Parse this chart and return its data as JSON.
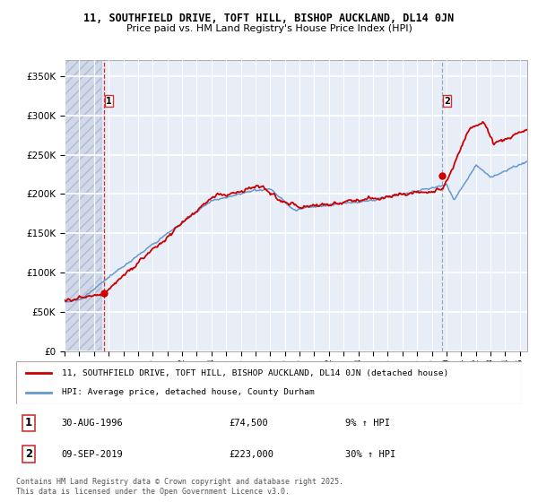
{
  "title1": "11, SOUTHFIELD DRIVE, TOFT HILL, BISHOP AUCKLAND, DL14 0JN",
  "title2": "Price paid vs. HM Land Registry's House Price Index (HPI)",
  "ylabel_ticks": [
    "£0",
    "£50K",
    "£100K",
    "£150K",
    "£200K",
    "£250K",
    "£300K",
    "£350K"
  ],
  "ytick_vals": [
    0,
    50000,
    100000,
    150000,
    200000,
    250000,
    300000,
    350000
  ],
  "ylim": [
    0,
    370000
  ],
  "xlim_start": 1994.0,
  "xlim_end": 2025.5,
  "hpi_color": "#6699cc",
  "price_color": "#cc0000",
  "bg_color": "#e8eef8",
  "hatch_end": 1996.5,
  "grid_color": "#ffffff",
  "marker1_x": 1996.66,
  "marker1_y": 74500,
  "marker2_x": 2019.69,
  "marker2_y": 223000,
  "legend_line1": "11, SOUTHFIELD DRIVE, TOFT HILL, BISHOP AUCKLAND, DL14 0JN (detached house)",
  "legend_line2": "HPI: Average price, detached house, County Durham",
  "note1_date": "30-AUG-1996",
  "note1_price": "£74,500",
  "note1_hpi": "9% ↑ HPI",
  "note2_date": "09-SEP-2019",
  "note2_price": "£223,000",
  "note2_hpi": "30% ↑ HPI",
  "footer": "Contains HM Land Registry data © Crown copyright and database right 2025.\nThis data is licensed under the Open Government Licence v3.0."
}
